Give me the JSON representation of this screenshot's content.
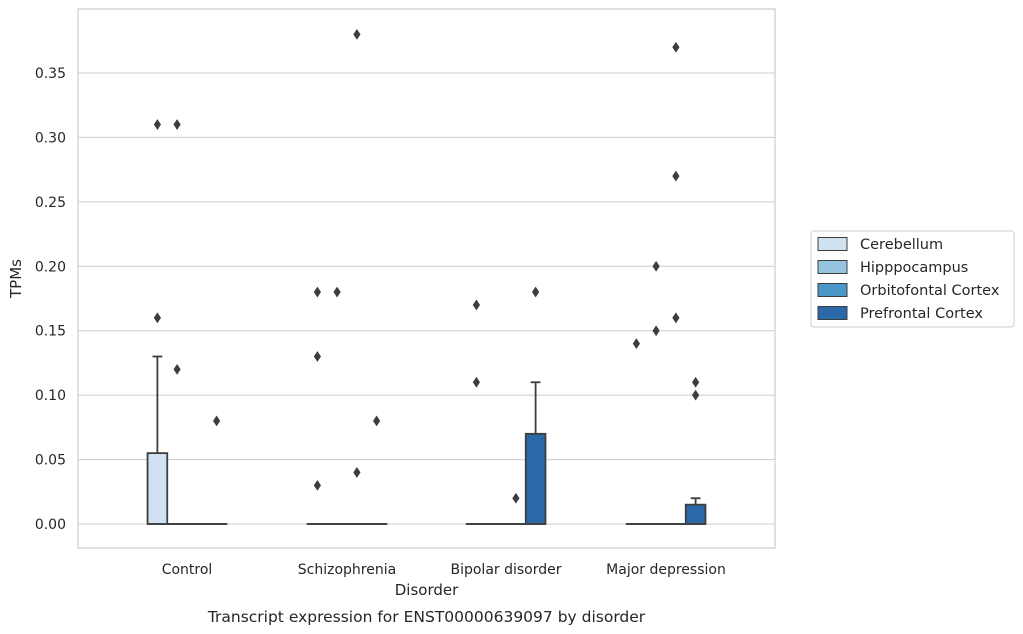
{
  "chart_data": {
    "type": "box",
    "caption": "Transcript expression for ENST00000639097 by disorder",
    "xlabel": "Disorder",
    "ylabel": "TPMs",
    "ylim": [
      -0.019,
      0.398
    ],
    "yticks": [
      0.0,
      0.05,
      0.1,
      0.15,
      0.2,
      0.25,
      0.3,
      0.35
    ],
    "ytick_labels": [
      "0.00",
      "0.05",
      "0.10",
      "0.15",
      "0.20",
      "0.25",
      "0.30",
      "0.35"
    ],
    "grid": true,
    "legend_position": "right",
    "categories": [
      "Control",
      "Schizophrenia",
      "Bipolar disorder",
      "Major depression"
    ],
    "series": [
      {
        "name": "Cerebellum",
        "color": "#d0e1f2",
        "boxes": [
          {
            "q1": 0.0,
            "median": 0.0,
            "q3": 0.055,
            "whisker_low": 0.0,
            "whisker_high": 0.13,
            "outliers": [
              0.16,
              0.31
            ]
          },
          {
            "q1": 0.0,
            "median": 0.0,
            "q3": 0.0,
            "whisker_low": 0.0,
            "whisker_high": 0.0,
            "outliers": [
              0.03,
              0.13,
              0.18
            ]
          },
          {
            "q1": 0.0,
            "median": 0.0,
            "q3": 0.0,
            "whisker_low": 0.0,
            "whisker_high": 0.0,
            "outliers": [
              0.11,
              0.17
            ]
          },
          {
            "q1": 0.0,
            "median": 0.0,
            "q3": 0.0,
            "whisker_low": 0.0,
            "whisker_high": 0.0,
            "outliers": [
              0.14
            ]
          }
        ]
      },
      {
        "name": "Hipppocampus",
        "color": "#94c4df",
        "boxes": [
          {
            "q1": 0.0,
            "median": 0.0,
            "q3": 0.0,
            "whisker_low": 0.0,
            "whisker_high": 0.0,
            "outliers": [
              0.12,
              0.31
            ]
          },
          {
            "q1": 0.0,
            "median": 0.0,
            "q3": 0.0,
            "whisker_low": 0.0,
            "whisker_high": 0.0,
            "outliers": [
              0.18
            ]
          },
          {
            "q1": 0.0,
            "median": 0.0,
            "q3": 0.0,
            "whisker_low": 0.0,
            "whisker_high": 0.0,
            "outliers": []
          },
          {
            "q1": 0.0,
            "median": 0.0,
            "q3": 0.0,
            "whisker_low": 0.0,
            "whisker_high": 0.0,
            "outliers": [
              0.15,
              0.2
            ]
          }
        ]
      },
      {
        "name": "Orbitofontal Cortex",
        "color": "#4a98c9",
        "boxes": [
          {
            "q1": 0.0,
            "median": 0.0,
            "q3": 0.0,
            "whisker_low": 0.0,
            "whisker_high": 0.0,
            "outliers": []
          },
          {
            "q1": 0.0,
            "median": 0.0,
            "q3": 0.0,
            "whisker_low": 0.0,
            "whisker_high": 0.0,
            "outliers": [
              0.04,
              0.38
            ]
          },
          {
            "q1": 0.0,
            "median": 0.0,
            "q3": 0.0,
            "whisker_low": 0.0,
            "whisker_high": 0.0,
            "outliers": [
              0.02
            ]
          },
          {
            "q1": 0.0,
            "median": 0.0,
            "q3": 0.0,
            "whisker_low": 0.0,
            "whisker_high": 0.0,
            "outliers": [
              0.16,
              0.27,
              0.37
            ]
          }
        ]
      },
      {
        "name": "Prefrontal Cortex",
        "color": "#2a68a8",
        "boxes": [
          {
            "q1": 0.0,
            "median": 0.0,
            "q3": 0.0,
            "whisker_low": 0.0,
            "whisker_high": 0.0,
            "outliers": [
              0.08
            ]
          },
          {
            "q1": 0.0,
            "median": 0.0,
            "q3": 0.0,
            "whisker_low": 0.0,
            "whisker_high": 0.0,
            "outliers": [
              0.08
            ]
          },
          {
            "q1": 0.0,
            "median": 0.0,
            "q3": 0.07,
            "whisker_low": 0.0,
            "whisker_high": 0.11,
            "outliers": [
              0.18
            ]
          },
          {
            "q1": 0.0,
            "median": 0.0,
            "q3": 0.015,
            "whisker_low": 0.0,
            "whisker_high": 0.02,
            "outliers": [
              0.1,
              0.11
            ]
          }
        ]
      }
    ]
  }
}
